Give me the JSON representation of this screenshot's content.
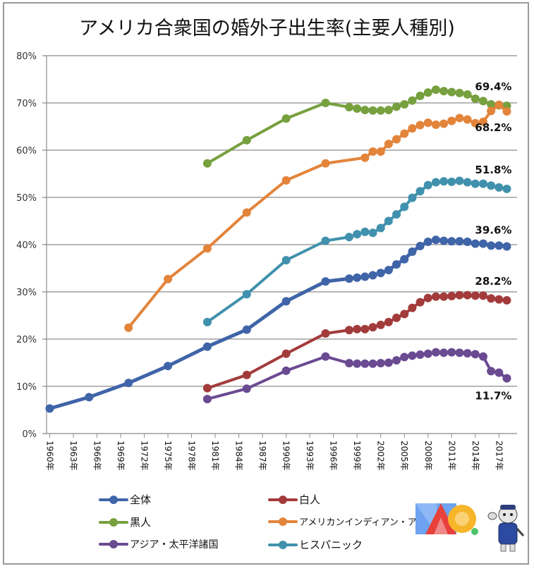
{
  "chart_data": {
    "type": "line",
    "title": "アメリカ合衆国の婚外子出生率(主要人種別)",
    "xlabel": "",
    "ylabel": "",
    "ylim": [
      0,
      80
    ],
    "y_ticks": [
      "0%",
      "10%",
      "20%",
      "30%",
      "40%",
      "50%",
      "60%",
      "70%",
      "80%"
    ],
    "y_tick_values": [
      0,
      10,
      20,
      30,
      40,
      50,
      60,
      70,
      80
    ],
    "x_ticks": [
      "1960年",
      "1963年",
      "1966年",
      "1969年",
      "1972年",
      "1975年",
      "1978年",
      "1981年",
      "1984年",
      "1987年",
      "1990年",
      "1993年",
      "1996年",
      "1999年",
      "2002年",
      "2005年",
      "2008年",
      "2011年",
      "2014年",
      "2017年"
    ],
    "x_tick_values": [
      1960,
      1963,
      1966,
      1969,
      1972,
      1975,
      1978,
      1981,
      1984,
      1987,
      1990,
      1993,
      1996,
      1999,
      2002,
      2005,
      2008,
      2011,
      2014,
      2017
    ],
    "xlim": [
      1959.6,
      2019.3
    ],
    "grid": true,
    "legend_position": "bottom",
    "series": [
      {
        "name": "全体",
        "color": "#3f64a8",
        "width": 5,
        "x": [
          1960,
          1965,
          1970,
          1975,
          1980,
          1985,
          1990,
          1995,
          1998,
          1999,
          2000,
          2001,
          2002,
          2003,
          2004,
          2005,
          2006,
          2007,
          2008,
          2009,
          2010,
          2011,
          2012,
          2013,
          2014,
          2015,
          2016,
          2017,
          2018
        ],
        "values": [
          5.3,
          7.7,
          10.7,
          14.3,
          18.4,
          22.0,
          28.0,
          32.2,
          32.8,
          33.0,
          33.2,
          33.5,
          34.0,
          34.6,
          35.8,
          36.9,
          38.5,
          39.7,
          40.6,
          41.0,
          40.8,
          40.7,
          40.7,
          40.6,
          40.2,
          40.2,
          39.8,
          39.8,
          39.6
        ],
        "end_label": "39.6%"
      },
      {
        "name": "白人",
        "color": "#a33b3b",
        "width": 4,
        "x": [
          1980,
          1985,
          1990,
          1995,
          1998,
          1999,
          2000,
          2001,
          2002,
          2003,
          2004,
          2005,
          2006,
          2007,
          2008,
          2009,
          2010,
          2011,
          2012,
          2013,
          2014,
          2015,
          2016,
          2017,
          2018
        ],
        "values": [
          9.6,
          12.4,
          16.9,
          21.2,
          21.9,
          22.1,
          22.1,
          22.5,
          23.0,
          23.6,
          24.5,
          25.3,
          26.6,
          27.8,
          28.7,
          29.0,
          29.0,
          29.1,
          29.3,
          29.3,
          29.2,
          29.2,
          28.6,
          28.4,
          28.2
        ],
        "end_label": "28.2%"
      },
      {
        "name": "黒人",
        "color": "#77a03f",
        "width": 4,
        "x": [
          1980,
          1985,
          1990,
          1995,
          1998,
          1999,
          2000,
          2001,
          2002,
          2003,
          2004,
          2005,
          2006,
          2007,
          2008,
          2009,
          2010,
          2011,
          2012,
          2013,
          2014,
          2015,
          2016,
          2017,
          2018
        ],
        "values": [
          57.2,
          62.1,
          66.7,
          70.0,
          69.1,
          68.8,
          68.5,
          68.4,
          68.4,
          68.5,
          69.2,
          69.7,
          70.5,
          71.5,
          72.2,
          72.8,
          72.5,
          72.3,
          72.1,
          71.8,
          70.9,
          70.4,
          69.7,
          69.5,
          69.4
        ],
        "end_label": "69.4%"
      },
      {
        "name": "アメリカンインディアン・アラスカ先住民",
        "legend_label": "アメリカンインディアン・アラスカ",
        "color": "#e3843b",
        "width": 4,
        "x": [
          1970,
          1975,
          1980,
          1985,
          1990,
          1995,
          2000,
          2001,
          2002,
          2003,
          2004,
          2005,
          2006,
          2007,
          2008,
          2009,
          2010,
          2011,
          2012,
          2013,
          2014,
          2015,
          2016,
          2017,
          2018
        ],
        "values": [
          22.4,
          32.7,
          39.2,
          46.8,
          53.6,
          57.2,
          58.4,
          59.7,
          59.7,
          61.3,
          62.3,
          63.5,
          64.6,
          65.3,
          65.8,
          65.4,
          65.6,
          66.2,
          66.8,
          66.5,
          65.7,
          66.0,
          68.3,
          69.6,
          68.2
        ],
        "end_label": "68.2%"
      },
      {
        "name": "アジア・太平洋諸国",
        "legend_label": "アジア・太平洋諸国",
        "color": "#6a4a91",
        "width": 4,
        "x": [
          1980,
          1985,
          1990,
          1995,
          1998,
          1999,
          2000,
          2001,
          2002,
          2003,
          2004,
          2005,
          2006,
          2007,
          2008,
          2009,
          2010,
          2011,
          2012,
          2013,
          2014,
          2015,
          2016,
          2017,
          2018
        ],
        "values": [
          7.3,
          9.5,
          13.3,
          16.3,
          14.9,
          14.8,
          14.8,
          14.8,
          14.9,
          15.0,
          15.5,
          16.2,
          16.5,
          16.7,
          16.9,
          17.2,
          17.1,
          17.2,
          17.1,
          17.0,
          16.8,
          16.3,
          13.2,
          12.9,
          11.7
        ],
        "end_label": "11.7%"
      },
      {
        "name": "ヒスパニック",
        "color": "#4091ad",
        "width": 4,
        "x": [
          1980,
          1985,
          1990,
          1995,
          1998,
          1999,
          2000,
          2001,
          2002,
          2003,
          2004,
          2005,
          2006,
          2007,
          2008,
          2009,
          2010,
          2011,
          2012,
          2013,
          2014,
          2015,
          2016,
          2017,
          2018
        ],
        "values": [
          23.6,
          29.5,
          36.7,
          40.8,
          41.6,
          42.2,
          42.7,
          42.5,
          43.5,
          45.0,
          46.4,
          48.0,
          49.9,
          51.3,
          52.6,
          53.2,
          53.4,
          53.3,
          53.5,
          53.2,
          52.9,
          52.9,
          52.5,
          52.1,
          51.8
        ],
        "end_label": "51.8%"
      }
    ]
  }
}
